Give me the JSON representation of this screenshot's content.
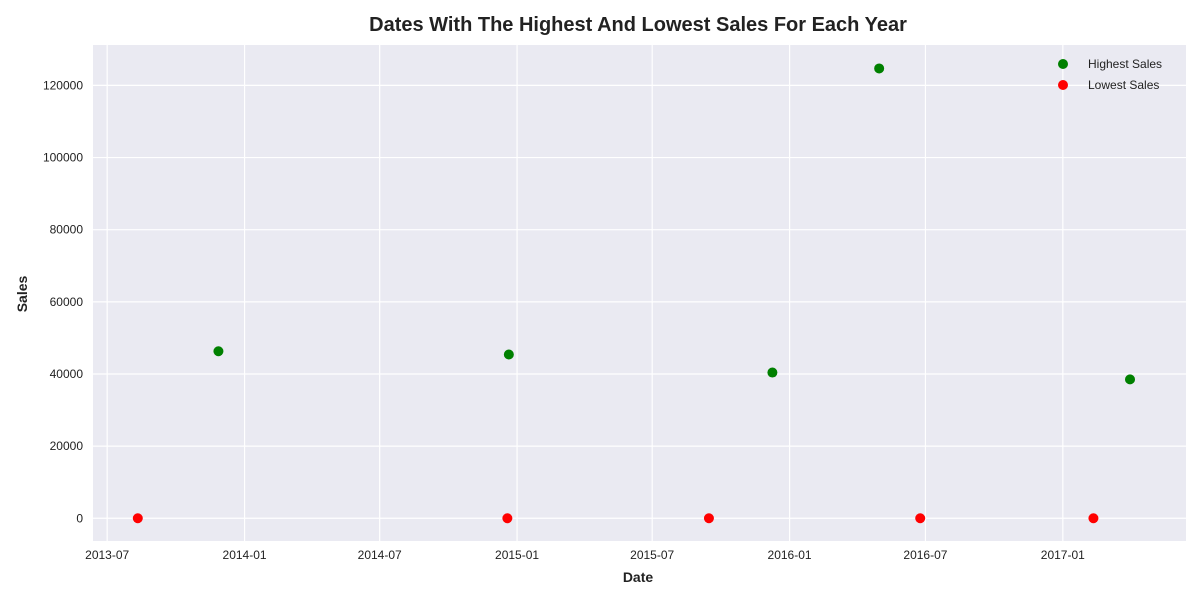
{
  "chart_data": {
    "type": "scatter",
    "title": "Dates With The Highest And Lowest Sales For Each Year",
    "xlabel": "Date",
    "ylabel": "Sales",
    "x_axis_type": "date",
    "xlim": [
      "2013-06-12",
      "2017-06-15"
    ],
    "ylim": [
      -6300,
      131200
    ],
    "x_ticks": [
      "2013-07-01",
      "2014-01-01",
      "2014-07-01",
      "2015-01-01",
      "2015-07-01",
      "2016-01-01",
      "2016-07-01",
      "2017-01-01"
    ],
    "x_tick_labels": [
      "2013-07",
      "2014-01",
      "2014-07",
      "2015-01",
      "2015-07",
      "2016-01",
      "2016-07",
      "2017-01"
    ],
    "y_ticks": [
      0,
      20000,
      40000,
      60000,
      80000,
      100000,
      120000
    ],
    "y_tick_labels": [
      "0",
      "20000",
      "40000",
      "60000",
      "80000",
      "100000",
      "120000"
    ],
    "grid": true,
    "legend_position": "top-right",
    "background_color": "#eaeaf2",
    "series": [
      {
        "name": "Highest Sales",
        "color": "#008000",
        "points": [
          {
            "x": "2013-11-27",
            "y": 46300
          },
          {
            "x": "2014-12-21",
            "y": 45400
          },
          {
            "x": "2015-12-09",
            "y": 40400
          },
          {
            "x": "2016-04-30",
            "y": 124700
          },
          {
            "x": "2017-04-01",
            "y": 38500
          }
        ]
      },
      {
        "name": "Lowest Sales",
        "color": "#ff0000",
        "points": [
          {
            "x": "2013-08-11",
            "y": 0
          },
          {
            "x": "2014-12-19",
            "y": 0
          },
          {
            "x": "2015-09-15",
            "y": 0
          },
          {
            "x": "2016-06-24",
            "y": 0
          },
          {
            "x": "2017-02-11",
            "y": 0
          }
        ]
      }
    ]
  }
}
